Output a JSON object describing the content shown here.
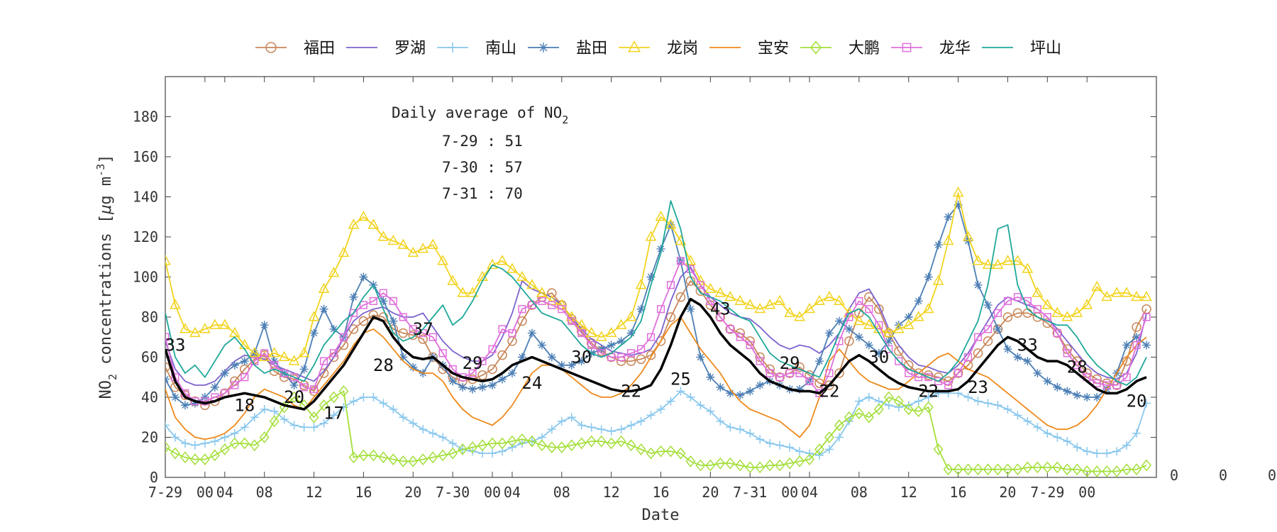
{
  "chart_data": {
    "type": "line",
    "title": "",
    "xlabel": "Date",
    "ylabel_main": "NO",
    "ylabel_sub": "2",
    "ylabel_rest": " concentrations [",
    "ylabel_mu": "μ",
    "ylabel_unit": "g m",
    "ylabel_sup": "-3",
    "ylabel_close": "]",
    "x_range": [
      0,
      100
    ],
    "ylim": [
      0,
      200
    ],
    "yticks": [
      0,
      20,
      40,
      60,
      80,
      100,
      120,
      140,
      160,
      180
    ],
    "xtick_labels": [
      {
        "x": 0,
        "label": "7-29"
      },
      {
        "x": 4,
        "label": "00"
      },
      {
        "x": 6,
        "label": "04"
      },
      {
        "x": 10,
        "label": "08"
      },
      {
        "x": 15,
        "label": "12"
      },
      {
        "x": 20,
        "label": "16"
      },
      {
        "x": 25,
        "label": "20"
      },
      {
        "x": 29,
        "label": "7-30"
      },
      {
        "x": 33,
        "label": "00"
      },
      {
        "x": 35,
        "label": "04"
      },
      {
        "x": 40,
        "label": "08"
      },
      {
        "x": 45,
        "label": "12"
      },
      {
        "x": 50,
        "label": "16"
      },
      {
        "x": 55,
        "label": "20"
      },
      {
        "x": 59,
        "label": "7-31"
      },
      {
        "x": 63,
        "label": "00"
      },
      {
        "x": 65,
        "label": "04"
      },
      {
        "x": 70,
        "label": "08"
      },
      {
        "x": 75,
        "label": "12"
      },
      {
        "x": 80,
        "label": "16"
      },
      {
        "x": 85,
        "label": "20"
      },
      {
        "x": 89,
        "label": "7-29"
      },
      {
        "x": 93,
        "label": "00"
      }
    ],
    "right_labels": [
      "0",
      "0",
      "0"
    ],
    "legend_position": "top",
    "annotation": {
      "title_main": "Daily average of NO",
      "title_sub": "2",
      "lines": [
        "7-29 : 51",
        "7-30 : 57",
        "7-31 : 70"
      ]
    },
    "series": [
      {
        "name": "福田",
        "color": "#c8875a",
        "marker": "circle",
        "values": [
          55,
          45,
          41,
          38,
          36,
          38,
          42,
          48,
          54,
          59,
          61,
          53,
          50,
          49,
          46,
          43,
          52,
          60,
          66,
          74,
          78,
          81,
          80,
          74,
          72,
          71,
          69,
          60,
          54,
          50,
          48,
          49,
          51,
          54,
          61,
          68,
          78,
          86,
          90,
          92,
          86,
          79,
          73,
          67,
          63,
          60,
          58,
          58,
          59,
          61,
          68,
          80,
          90,
          98,
          93,
          86,
          80,
          74,
          72,
          68,
          60,
          54,
          50,
          52,
          55,
          51,
          47,
          46,
          52,
          68,
          82,
          90,
          84,
          72,
          63,
          56,
          52,
          51,
          50,
          48,
          52,
          56,
          62,
          68,
          74,
          80,
          82,
          82,
          80,
          77,
          72,
          64,
          58,
          52,
          49,
          47,
          46,
          58,
          75,
          84
        ]
      },
      {
        "name": "罗湖",
        "color": "#7d63cf",
        "marker": "none",
        "values": [
          68,
          54,
          48,
          46,
          46,
          48,
          53,
          58,
          61,
          60,
          59,
          56,
          54,
          52,
          50,
          48,
          53,
          60,
          70,
          78,
          82,
          84,
          85,
          82,
          80,
          80,
          82,
          75,
          68,
          63,
          60,
          58,
          58,
          61,
          70,
          82,
          98,
          94,
          92,
          90,
          86,
          80,
          74,
          69,
          66,
          63,
          62,
          61,
          62,
          64,
          72,
          88,
          100,
          105,
          96,
          90,
          86,
          82,
          80,
          79,
          75,
          70,
          66,
          64,
          66,
          65,
          62,
          66,
          72,
          84,
          92,
          94,
          86,
          74,
          66,
          60,
          56,
          55,
          53,
          52,
          56,
          62,
          70,
          78,
          86,
          90,
          88,
          86,
          84,
          80,
          74,
          68,
          62,
          56,
          52,
          50,
          49,
          52,
          62,
          82
        ]
      },
      {
        "name": "南山",
        "color": "#88c7ee",
        "marker": "plus",
        "values": [
          26,
          20,
          17,
          16,
          17,
          18,
          20,
          22,
          25,
          30,
          34,
          33,
          29,
          26,
          25,
          25,
          27,
          31,
          35,
          38,
          40,
          40,
          37,
          34,
          30,
          27,
          24,
          22,
          20,
          17,
          14,
          13,
          12,
          12,
          13,
          15,
          17,
          18,
          20,
          24,
          28,
          30,
          26,
          25,
          24,
          23,
          24,
          26,
          28,
          31,
          34,
          38,
          43,
          40,
          36,
          33,
          28,
          25,
          24,
          22,
          19,
          17,
          16,
          15,
          13,
          12,
          11,
          14,
          20,
          28,
          38,
          40,
          38,
          36,
          35,
          36,
          38,
          40,
          42,
          42,
          42,
          40,
          38,
          37,
          36,
          34,
          31,
          28,
          25,
          22,
          20,
          18,
          15,
          13,
          12,
          12,
          13,
          16,
          22,
          37
        ]
      },
      {
        "name": "盐田",
        "color": "#4c7fb5",
        "marker": "star",
        "values": [
          49,
          40,
          36,
          37,
          40,
          45,
          52,
          56,
          58,
          62,
          76,
          58,
          52,
          46,
          54,
          72,
          84,
          74,
          70,
          90,
          100,
          96,
          88,
          78,
          60,
          55,
          52,
          60,
          56,
          48,
          45,
          44,
          45,
          46,
          49,
          52,
          60,
          72,
          66,
          60,
          56,
          56,
          58,
          62,
          64,
          66,
          68,
          72,
          84,
          100,
          114,
          126,
          108,
          84,
          60,
          50,
          45,
          42,
          41,
          43,
          46,
          48,
          46,
          44,
          44,
          48,
          58,
          72,
          78,
          74,
          70,
          66,
          62,
          68,
          76,
          80,
          88,
          100,
          116,
          130,
          136,
          118,
          96,
          86,
          74,
          64,
          60,
          58,
          52,
          48,
          45,
          43,
          41,
          40,
          40,
          44,
          52,
          66,
          70,
          66
        ]
      },
      {
        "name": "龙岗",
        "color": "#f2d31e",
        "marker": "triangle",
        "values": [
          108,
          86,
          74,
          72,
          74,
          76,
          76,
          72,
          66,
          62,
          60,
          62,
          60,
          58,
          62,
          80,
          94,
          102,
          112,
          126,
          130,
          126,
          120,
          118,
          116,
          112,
          114,
          116,
          108,
          98,
          92,
          92,
          100,
          106,
          108,
          104,
          100,
          96,
          92,
          88,
          86,
          80,
          76,
          72,
          70,
          72,
          76,
          80,
          96,
          120,
          130,
          126,
          118,
          108,
          98,
          94,
          92,
          90,
          88,
          86,
          84,
          86,
          88,
          82,
          80,
          84,
          88,
          90,
          88,
          82,
          78,
          76,
          74,
          72,
          74,
          76,
          80,
          84,
          98,
          118,
          142,
          120,
          108,
          106,
          106,
          108,
          108,
          104,
          92,
          86,
          82,
          80,
          82,
          86,
          95,
          90,
          92,
          92,
          90,
          90
        ]
      },
      {
        "name": "宝安",
        "color": "#ef8a1c",
        "marker": "none",
        "values": [
          44,
          30,
          24,
          20,
          19,
          20,
          22,
          26,
          32,
          40,
          44,
          42,
          40,
          36,
          34,
          40,
          46,
          52,
          58,
          66,
          72,
          74,
          70,
          64,
          58,
          54,
          52,
          52,
          48,
          40,
          34,
          30,
          28,
          26,
          30,
          36,
          44,
          52,
          56,
          56,
          54,
          50,
          46,
          42,
          40,
          40,
          42,
          46,
          52,
          60,
          68,
          76,
          80,
          72,
          64,
          58,
          52,
          44,
          38,
          34,
          32,
          30,
          28,
          24,
          20,
          26,
          40,
          58,
          64,
          58,
          52,
          48,
          46,
          44,
          44,
          48,
          52,
          56,
          60,
          62,
          58,
          54,
          52,
          50,
          46,
          42,
          38,
          34,
          30,
          26,
          24,
          24,
          26,
          30,
          36,
          44,
          52,
          60,
          66,
          70
        ]
      },
      {
        "name": "大鹏",
        "color": "#a4df3c",
        "marker": "diamond",
        "values": [
          15,
          12,
          10,
          9,
          9,
          11,
          14,
          17,
          17,
          16,
          20,
          28,
          35,
          40,
          36,
          30,
          36,
          40,
          43,
          10,
          11,
          11,
          10,
          9,
          8,
          8,
          9,
          10,
          11,
          12,
          14,
          15,
          16,
          17,
          17,
          18,
          19,
          18,
          16,
          15,
          15,
          16,
          17,
          18,
          18,
          17,
          18,
          16,
          14,
          12,
          13,
          13,
          12,
          8,
          6,
          6,
          7,
          7,
          6,
          5,
          5,
          6,
          6,
          7,
          8,
          9,
          14,
          20,
          26,
          30,
          32,
          30,
          34,
          40,
          38,
          34,
          33,
          35,
          14,
          4,
          4,
          4,
          4,
          4,
          4,
          4,
          4,
          5,
          5,
          5,
          5,
          4,
          4,
          3,
          3,
          3,
          3,
          4,
          4,
          6
        ]
      },
      {
        "name": "龙华",
        "color": "#df6fdc",
        "marker": "square",
        "values": [
          70,
          50,
          42,
          38,
          38,
          40,
          42,
          46,
          50,
          58,
          62,
          56,
          52,
          50,
          45,
          44,
          58,
          62,
          70,
          82,
          86,
          88,
          92,
          88,
          80,
          74,
          72,
          70,
          62,
          54,
          50,
          52,
          58,
          64,
          74,
          72,
          84,
          86,
          88,
          86,
          84,
          78,
          72,
          66,
          62,
          60,
          60,
          62,
          64,
          70,
          84,
          96,
          108,
          104,
          96,
          88,
          80,
          74,
          70,
          66,
          58,
          52,
          50,
          52,
          52,
          48,
          42,
          52,
          68,
          80,
          88,
          84,
          76,
          64,
          58,
          52,
          50,
          50,
          48,
          46,
          52,
          60,
          70,
          74,
          82,
          88,
          90,
          88,
          84,
          80,
          72,
          62,
          56,
          50,
          47,
          46,
          46,
          50,
          66,
          80
        ]
      },
      {
        "name": "坪山",
        "color": "#1fa89a",
        "marker": "none",
        "values": [
          82,
          60,
          52,
          56,
          50,
          58,
          66,
          70,
          64,
          56,
          52,
          54,
          52,
          50,
          48,
          56,
          66,
          72,
          78,
          82,
          90,
          96,
          84,
          72,
          68,
          70,
          74,
          80,
          86,
          76,
          80,
          88,
          98,
          106,
          104,
          100,
          94,
          88,
          82,
          80,
          78,
          72,
          66,
          62,
          60,
          62,
          66,
          70,
          78,
          96,
          112,
          138,
          124,
          100,
          92,
          90,
          88,
          84,
          80,
          78,
          70,
          62,
          58,
          56,
          54,
          52,
          50,
          60,
          72,
          82,
          84,
          80,
          72,
          64,
          58,
          54,
          52,
          50,
          48,
          52,
          58,
          68,
          78,
          96,
          124,
          126,
          96,
          84,
          80,
          78,
          76,
          76,
          70,
          62,
          56,
          52,
          48,
          46,
          50,
          60
        ]
      },
      {
        "name": "",
        "color": "#000000",
        "marker": "none",
        "bold": true,
        "values": [
          64,
          48,
          40,
          38,
          37,
          38,
          40,
          41,
          42,
          41,
          40,
          38,
          36,
          35,
          34,
          38,
          44,
          50,
          56,
          64,
          72,
          80,
          78,
          70,
          64,
          60,
          59,
          60,
          56,
          52,
          50,
          49,
          48,
          49,
          52,
          56,
          58,
          60,
          58,
          56,
          54,
          52,
          50,
          48,
          46,
          44,
          43,
          43,
          44,
          46,
          54,
          66,
          80,
          89,
          86,
          80,
          72,
          66,
          62,
          58,
          52,
          48,
          46,
          44,
          43,
          43,
          42,
          46,
          52,
          58,
          61,
          58,
          54,
          50,
          47,
          45,
          44,
          43,
          43,
          43,
          44,
          48,
          54,
          60,
          66,
          70,
          68,
          64,
          60,
          58,
          58,
          56,
          52,
          48,
          44,
          42,
          42,
          44,
          48,
          50
        ]
      }
    ],
    "data_labels": [
      {
        "x": 1,
        "y": 66,
        "text": "33"
      },
      {
        "x": 8,
        "y": 36,
        "text": "18"
      },
      {
        "x": 13,
        "y": 40,
        "text": "20"
      },
      {
        "x": 17,
        "y": 32,
        "text": "17"
      },
      {
        "x": 22,
        "y": 56,
        "text": "28"
      },
      {
        "x": 26,
        "y": 74,
        "text": "37"
      },
      {
        "x": 31,
        "y": 57,
        "text": "29"
      },
      {
        "x": 37,
        "y": 47,
        "text": "24"
      },
      {
        "x": 42,
        "y": 60,
        "text": "30"
      },
      {
        "x": 47,
        "y": 43,
        "text": "22"
      },
      {
        "x": 52,
        "y": 49,
        "text": "25"
      },
      {
        "x": 56,
        "y": 84,
        "text": "43"
      },
      {
        "x": 63,
        "y": 57,
        "text": "29"
      },
      {
        "x": 67,
        "y": 43,
        "text": "22"
      },
      {
        "x": 72,
        "y": 60,
        "text": "30"
      },
      {
        "x": 77,
        "y": 43,
        "text": "22"
      },
      {
        "x": 82,
        "y": 45,
        "text": "23"
      },
      {
        "x": 87,
        "y": 66,
        "text": "33"
      },
      {
        "x": 92,
        "y": 55,
        "text": "28"
      },
      {
        "x": 98,
        "y": 38,
        "text": "20"
      }
    ]
  }
}
